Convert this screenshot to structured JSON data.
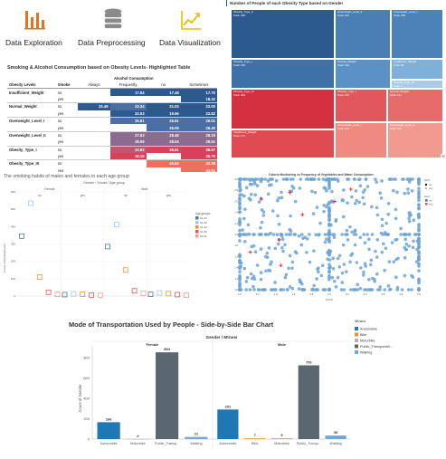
{
  "icons": [
    {
      "name": "bar-chart-icon",
      "label": "Data Exploration",
      "color": "#e0741f"
    },
    {
      "name": "database-icon",
      "label": "Data Preprocessing",
      "color": "#8a8a8a"
    },
    {
      "name": "line-chart-icon",
      "label": "Data Visualization",
      "color": "#f2b800"
    }
  ],
  "highlight_table": {
    "title": "Smoking & Alcohol Consumption based on Obesity Levels- Highlighted Table",
    "group_header": "Alcohol Consumption",
    "headers": [
      "Obesity Levels",
      "Smoke",
      "Always",
      "Frequently",
      "no",
      "Sometimes"
    ],
    "rows": [
      {
        "level": "Insufficient_Weight",
        "smoke": "no",
        "always": "",
        "frequently": "17.84",
        "no": "17.48",
        "sometimes": "17.70"
      },
      {
        "level": "",
        "smoke": "yes",
        "always": "",
        "frequently": "",
        "no": "",
        "sometimes": "18.32"
      },
      {
        "level": "Normal_Weight",
        "smoke": "no",
        "always": "22.49",
        "frequently": "23.34",
        "no": "21.03",
        "sometimes": "22.00"
      },
      {
        "level": "",
        "smoke": "yes",
        "always": "",
        "frequently": "22.03",
        "no": "19.66",
        "sometimes": "22.82"
      },
      {
        "level": "Overweight_Level_I",
        "smoke": "no",
        "always": "",
        "frequently": "25.81",
        "no": "25.91",
        "sometimes": "26.01"
      },
      {
        "level": "",
        "smoke": "yes",
        "always": "",
        "frequently": "",
        "no": "26.09",
        "sometimes": "26.40"
      },
      {
        "level": "Overweight_Level_II",
        "smoke": "no",
        "always": "",
        "frequently": "27.63",
        "no": "28.46",
        "sometimes": "28.19"
      },
      {
        "level": "",
        "smoke": "yes",
        "always": "",
        "frequently": "28.09",
        "no": "28.04",
        "sometimes": "28.51"
      },
      {
        "level": "Obesity_Type_I",
        "smoke": "no",
        "always": "",
        "frequently": "33.92",
        "no": "36.91",
        "sometimes": "36.07"
      },
      {
        "level": "",
        "smoke": "yes",
        "always": "",
        "frequently": "36.19",
        "no": "",
        "sometimes": "36.70"
      },
      {
        "level": "Obesity_Type_III",
        "smoke": "no",
        "always": "",
        "frequently": "",
        "no": "40.64",
        "sometimes": "42.28"
      },
      {
        "level": "",
        "smoke": "yes",
        "always": "",
        "frequently": "",
        "no": "",
        "sometimes": "41.91"
      },
      {
        "level": "Obesity_Type_I",
        "smoke": "no",
        "always": "",
        "frequently": "31.60",
        "no": "32.36",
        "sometimes": "31.50"
      },
      {
        "level": "",
        "smoke": "yes",
        "always": "",
        "frequently": "30.68",
        "no": "30.86",
        "sometimes": "31.52"
      }
    ]
  },
  "treemap": {
    "title": "Number of People of each Obesity Type based on Gender",
    "cells": [
      {
        "label": "Obesity_Type_II",
        "value": "Total: 295",
        "color": "#2c5a8e"
      },
      {
        "label": "Overweight_Level_II",
        "value": "Total: 187",
        "color": "#4a7fb5"
      },
      {
        "label": "Overweight_Level_I",
        "value": "Total: 186",
        "color": "#4b82b8"
      },
      {
        "label": "Obesity_Type_I",
        "value": "Total: 195",
        "color": "#3d71a8"
      },
      {
        "label": "Normal_Weight",
        "value": "Total: 146",
        "color": "#5a91c6"
      },
      {
        "label": "Insufficient_Weight",
        "value": "Total: 99",
        "color": "#7eb0da"
      },
      {
        "label": "Obesity_Type_III",
        "value": "Total: 1",
        "color": "#a9cbe7"
      },
      {
        "label": "Obesity_Type_III",
        "value": "Total: 323",
        "color": "#d4303f"
      },
      {
        "label": "Obesity_Type_I",
        "value": "Total: 156",
        "color": "#e2565d"
      },
      {
        "label": "Normal_Weight",
        "value": "Total: 141",
        "color": "#e86b6b"
      },
      {
        "label": "Overweight_Level_I",
        "value": "Total: 104",
        "color": "#f08a80"
      },
      {
        "label": "Insufficient_Weight",
        "value": "Total: 173",
        "color": "#e04b52"
      },
      {
        "label": "Overweight_Level_II",
        "value": "Total: 103",
        "color": "#f29a90"
      },
      {
        "label": "Obesity_Type_II",
        "value": "Total: 2",
        "color": "#f7b9b0"
      }
    ]
  },
  "smoking_chart": {
    "title": "The smoking habits of males and females in each age group",
    "header": "Gender / Smoke / Age group",
    "gender_labels": [
      "Female",
      "Male"
    ],
    "smoke_labels": [
      "no",
      "yes",
      "no",
      "yes"
    ],
    "y_title": "Count of Smoke(Count)",
    "y_ticks": [
      "600",
      "500",
      "400",
      "300",
      "200",
      "100",
      "0"
    ],
    "legend_title": "Age groups",
    "legend": [
      {
        "label": "14-20",
        "color": "#4e79a7"
      },
      {
        "label": "21-30",
        "color": "#a0cbe8"
      },
      {
        "label": "31-40",
        "color": "#f28e2b"
      },
      {
        "label": "41-50",
        "color": "#e15759"
      },
      {
        "label": "51-61",
        "color": "#ff9d9a"
      }
    ],
    "columns": [
      [
        {
          "value": 345,
          "color": "#4e79a7"
        },
        {
          "value": 535,
          "color": "#a0cbe8"
        },
        {
          "value": 110,
          "color": "#f28e2b"
        },
        {
          "value": 22,
          "color": "#e15759"
        },
        {
          "value": 10,
          "color": "#ff9d9a"
        }
      ],
      [
        {
          "value": 8,
          "color": "#4e79a7"
        },
        {
          "value": 12,
          "color": "#a0cbe8"
        },
        {
          "value": 10,
          "color": "#f28e2b"
        },
        {
          "value": 6,
          "color": "#e15759"
        },
        {
          "value": 4,
          "color": "#ff9d9a"
        }
      ],
      [
        {
          "value": 285,
          "color": "#4e79a7"
        },
        {
          "value": 412,
          "color": "#a0cbe8"
        },
        {
          "value": 150,
          "color": "#f28e2b"
        },
        {
          "value": 30,
          "color": "#e15759"
        },
        {
          "value": 15,
          "color": "#ff9d9a"
        }
      ],
      [
        {
          "value": 10,
          "color": "#4e79a7"
        },
        {
          "value": 18,
          "color": "#a0cbe8"
        },
        {
          "value": 14,
          "color": "#f28e2b"
        },
        {
          "value": 8,
          "color": "#e15759"
        },
        {
          "value": 5,
          "color": "#ff9d9a"
        }
      ]
    ]
  },
  "scatter": {
    "title": "Calorie Monitoring vs Frequency of Vegetables and Water Consumption",
    "x_title": "FCVC",
    "x_ticks": [
      "1.0",
      "1.2",
      "1.4",
      "1.6",
      "1.8",
      "2.0",
      "2.2",
      "2.4",
      "2.6",
      "2.8",
      "3.0"
    ],
    "y_ticks": [
      "3.0",
      "2.8",
      "2.6",
      "2.4",
      "2.2",
      "2.0",
      "1.8",
      "1.6",
      "1.4",
      "1.2",
      "1.0"
    ],
    "legend_title_1": "SCC",
    "legend_1": [
      {
        "label": "no",
        "color": "#1a1a1a"
      },
      {
        "label": "yes",
        "color": "#bbbbbb"
      }
    ],
    "legend_title_2": "SCC",
    "legend_2": [
      {
        "label": "no",
        "color": "#4e79a7"
      },
      {
        "label": "yes",
        "color": "#e15759"
      }
    ],
    "point_color": "#6ba3d6",
    "mark_color": "#e8253a"
  },
  "transport_chart": {
    "title": "Mode of Transportation Used by People - Side-by-Side Bar Chart",
    "header": "Gender / Mtrans",
    "y_title": "Count of Gender",
    "y_ticks": [
      "800",
      "600",
      "400",
      "200",
      "0"
    ],
    "ylim": [
      0,
      900
    ],
    "legend_title": "Mtrans",
    "legend": [
      {
        "label": "Automobile",
        "color": "#1f77b4"
      },
      {
        "label": "Bike",
        "color": "#f28e2b"
      },
      {
        "label": "Motorbike",
        "color": "#bab0ac"
      },
      {
        "label": "Public_Transportati...",
        "color": "#5b6770"
      },
      {
        "label": "Walking",
        "color": "#6fa8dc"
      }
    ],
    "groups": [
      {
        "name": "Female",
        "bars": [
          {
            "category": "Automobile",
            "value": 166,
            "label": "166",
            "color": "#1f77b4"
          },
          {
            "category": "Motorbike",
            "value": 2,
            "label": "2",
            "color": "#bab0ac"
          },
          {
            "category": "Public_Transp...",
            "value": 854,
            "label": "854",
            "color": "#5b6770"
          },
          {
            "category": "Walking",
            "value": 21,
            "label": "21",
            "color": "#6fa8dc"
          }
        ]
      },
      {
        "name": "Male",
        "bars": [
          {
            "category": "Automobile",
            "value": 291,
            "label": "291",
            "color": "#1f77b4"
          },
          {
            "category": "Bike",
            "value": 7,
            "label": "7",
            "color": "#f28e2b"
          },
          {
            "category": "Motorbike",
            "value": 9,
            "label": "9",
            "color": "#bab0ac"
          },
          {
            "category": "Public_Transp...",
            "value": 726,
            "label": "726",
            "color": "#5b6770"
          },
          {
            "category": "Walking",
            "value": 35,
            "label": "35",
            "color": "#6fa8dc"
          }
        ]
      }
    ]
  },
  "chart_data": [
    {
      "type": "table",
      "title": "Smoking & Alcohol Consumption based on Obesity Levels- Highlighted Table",
      "columns": [
        "Always",
        "Frequently",
        "no",
        "Sometimes"
      ]
    },
    {
      "type": "heatmap",
      "title": "Number of People of each Obesity Type based on Gender",
      "values": [
        295,
        187,
        186,
        195,
        146,
        99,
        1,
        323,
        156,
        141,
        104,
        173,
        103,
        2
      ]
    },
    {
      "type": "scatter",
      "title": "The smoking habits of males and females in each age group",
      "ylim": [
        0,
        600
      ]
    },
    {
      "type": "scatter",
      "title": "Calorie Monitoring vs Frequency of Vegetables and Water Consumption",
      "xlabel": "FCVC",
      "xlim": [
        1,
        3
      ],
      "ylim": [
        1,
        3
      ]
    },
    {
      "type": "bar",
      "title": "Mode of Transportation Used by People - Side-by-Side Bar Chart",
      "ylabel": "Count of Gender",
      "ylim": [
        0,
        900
      ],
      "series": [
        {
          "name": "Female",
          "categories": [
            "Automobile",
            "Motorbike",
            "Public_Transp...",
            "Walking"
          ],
          "values": [
            166,
            2,
            854,
            21
          ]
        },
        {
          "name": "Male",
          "categories": [
            "Automobile",
            "Bike",
            "Motorbike",
            "Public_Transp...",
            "Walking"
          ],
          "values": [
            291,
            7,
            9,
            726,
            35
          ]
        }
      ]
    }
  ]
}
